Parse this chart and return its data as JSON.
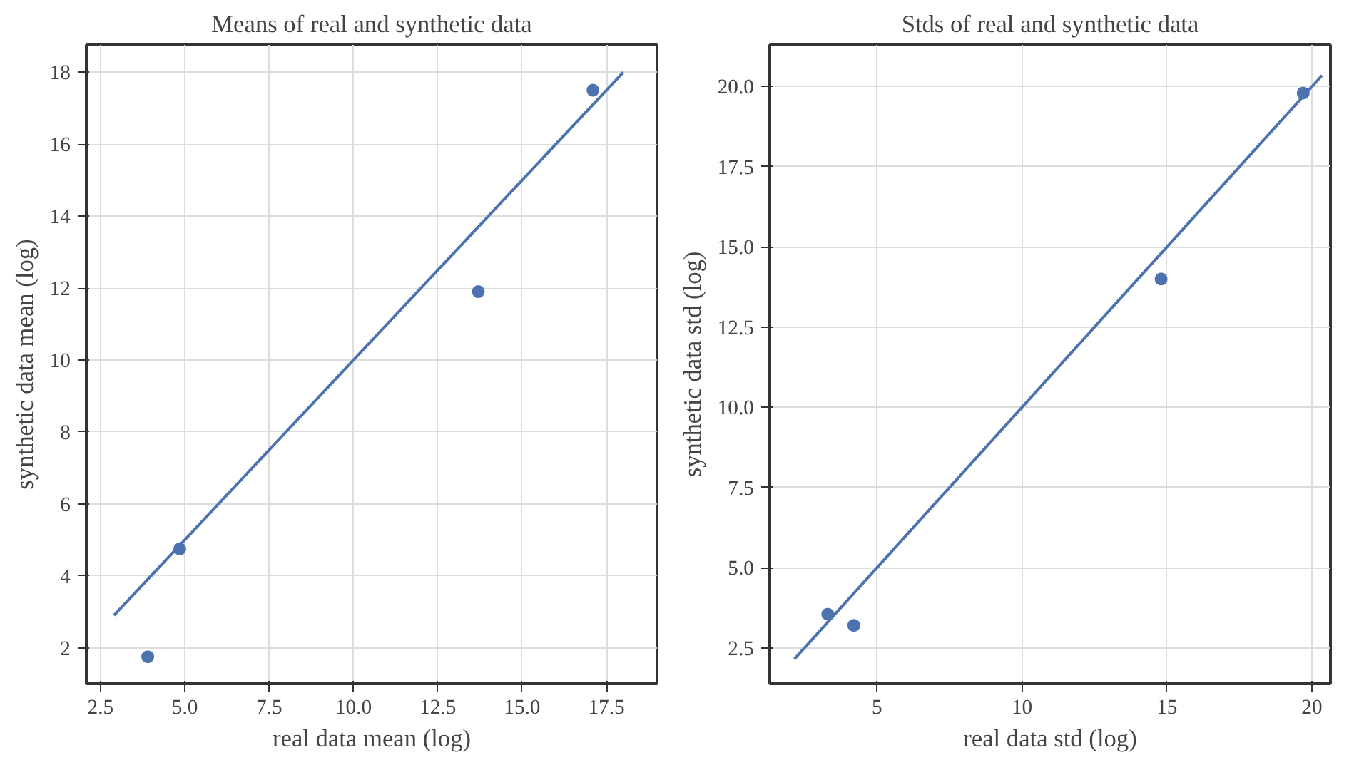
{
  "chart_data": [
    {
      "type": "scatter",
      "title": "Means of real and synthetic data",
      "xlabel": "real data mean (log)",
      "ylabel": "synthetic data mean (log)",
      "xlim": [
        2.08,
        19.0
      ],
      "ylim": [
        1.0,
        18.76
      ],
      "xticks": [
        2.5,
        {
          "value": 5,
          "label": "5.0"
        },
        7.5,
        {
          "value": 10,
          "label": "10.0"
        },
        12.5,
        {
          "value": 15,
          "label": "15.0"
        },
        17.5
      ],
      "yticks": [
        2,
        4,
        6,
        8,
        10,
        12,
        14,
        16,
        18
      ],
      "grid": true,
      "series": [
        {
          "type": "line",
          "color": "#4c72b0",
          "x": [
            2.9,
            18.0
          ],
          "values": [
            2.9,
            18.0
          ],
          "marker": "none",
          "line_style": "solid"
        },
        {
          "color": "#4c72b0",
          "x": [
            3.9,
            4.85,
            13.7,
            17.1
          ],
          "values": [
            1.75,
            4.75,
            11.9,
            17.5
          ],
          "marker": "circle"
        }
      ]
    },
    {
      "type": "scatter",
      "title": "Stds of real and synthetic data",
      "xlabel": "real data std (log)",
      "ylabel": "synthetic data std (log)",
      "xlim": [
        1.3,
        20.64
      ],
      "ylim": [
        1.38,
        21.3
      ],
      "xticks": [
        5,
        10,
        15,
        20
      ],
      "yticks": [
        2.5,
        {
          "value": 5,
          "label": "5.0"
        },
        7.5,
        {
          "value": 10,
          "label": "10.0"
        },
        12.5,
        {
          "value": 15,
          "label": "15.0"
        },
        17.5,
        {
          "value": 20,
          "label": "20.0"
        }
      ],
      "grid": true,
      "series": [
        {
          "type": "line",
          "color": "#4c72b0",
          "x": [
            2.15,
            20.35
          ],
          "values": [
            2.15,
            20.35
          ],
          "marker": "none",
          "line_style": "solid"
        },
        {
          "color": "#4c72b0",
          "x": [
            3.3,
            4.2,
            14.8,
            19.7
          ],
          "values": [
            3.55,
            3.2,
            14.0,
            19.8
          ],
          "marker": "circle"
        }
      ]
    }
  ]
}
